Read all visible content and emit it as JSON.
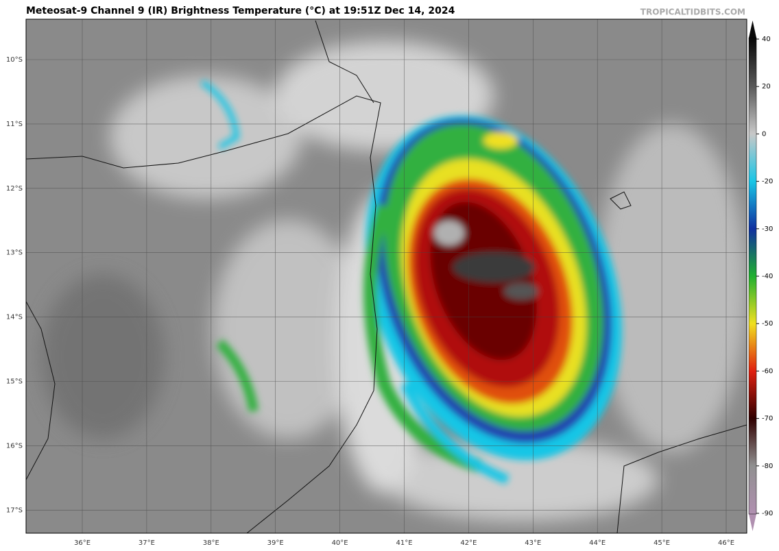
{
  "header": {
    "title": "Meteosat-9 Channel 9 (IR) Brightness Temperature (°C) at 19:51Z Dec 14, 2024",
    "credit": "TROPICALTIDBITS.COM"
  },
  "map": {
    "lat_labels": [
      "10°S",
      "11°S",
      "12°S",
      "13°S",
      "14°S",
      "15°S",
      "16°S",
      "17°S"
    ],
    "lon_labels": [
      "36°E",
      "37°E",
      "38°E",
      "39°E",
      "40°E",
      "41°E",
      "42°E",
      "43°E",
      "44°E",
      "45°E",
      "46°E"
    ]
  },
  "colorbar": {
    "ticks": [
      40,
      20,
      0,
      -20,
      -30,
      -40,
      -50,
      -60,
      -70,
      -80,
      -90
    ],
    "colors": [
      "#0a0a0a",
      "#5a5a5a",
      "#c8c8c8",
      "#19c6e6",
      "#1030a0",
      "#20b030",
      "#f0e020",
      "#e02010",
      "#300000",
      "#909090",
      "#b090b0"
    ]
  }
}
